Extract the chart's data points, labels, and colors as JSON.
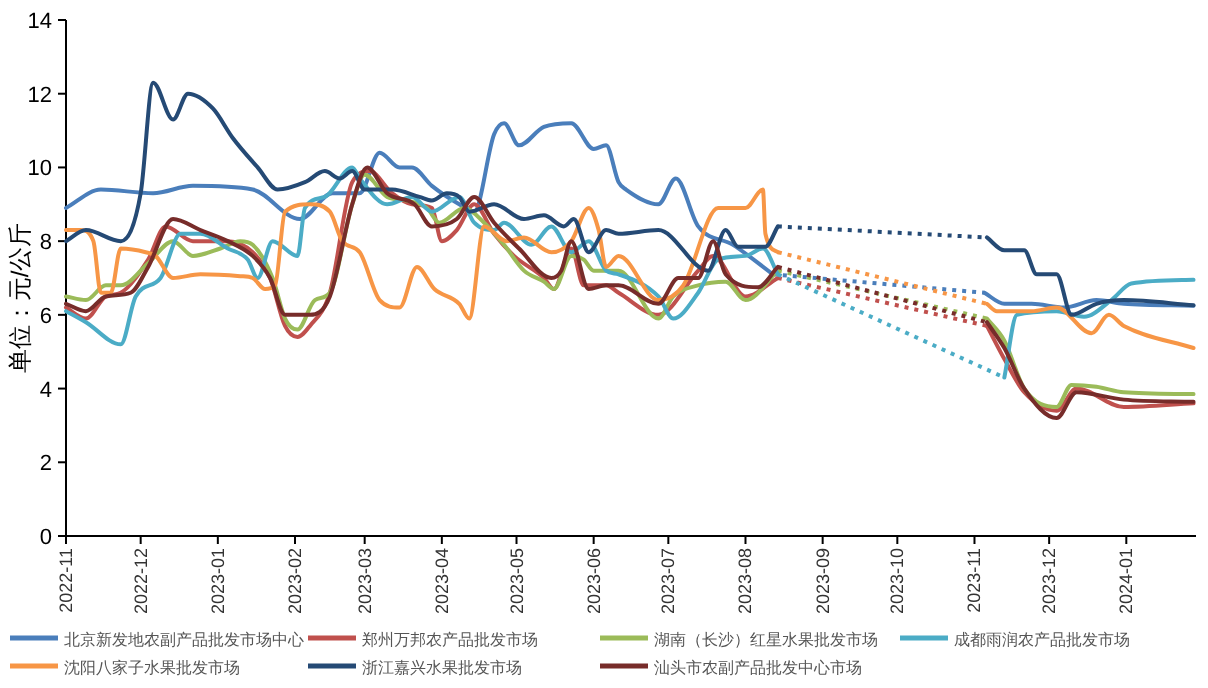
{
  "chart_data": {
    "type": "line",
    "ylabel": "单位：元/公斤",
    "ylim": [
      0,
      14
    ],
    "yticks": [
      0,
      2,
      4,
      6,
      8,
      10,
      12,
      14
    ],
    "xlim": [
      "2022-11-01",
      "2024-01-29"
    ],
    "xticks": [
      {
        "value": "2022-11-01",
        "label": "2022-11"
      },
      {
        "value": "2022-12-01",
        "label": "2022-12"
      },
      {
        "value": "2023-01-01",
        "label": "2023-01"
      },
      {
        "value": "2023-02-01",
        "label": "2023-02"
      },
      {
        "value": "2023-03-01",
        "label": "2023-03"
      },
      {
        "value": "2023-04-01",
        "label": "2023-04"
      },
      {
        "value": "2023-05-01",
        "label": "2023-05"
      },
      {
        "value": "2023-06-01",
        "label": "2023-06"
      },
      {
        "value": "2023-07-01",
        "label": "2023-07"
      },
      {
        "value": "2023-08-01",
        "label": "2023-08"
      },
      {
        "value": "2023-09-01",
        "label": "2023-09"
      },
      {
        "value": "2023-10-01",
        "label": "2023-10"
      },
      {
        "value": "2023-11-01",
        "label": "2023-11"
      },
      {
        "value": "2023-12-01",
        "label": "2023-12"
      },
      {
        "value": "2024-01-01",
        "label": "2024-01"
      }
    ],
    "grid": false,
    "legend": "bottom",
    "marker": "none",
    "line_style": "solid",
    "series": [
      {
        "name": "北京新发地农副产品批发市场中心",
        "color": "#4a7ebb",
        "x": [
          "2022-11-01",
          "2022-11-15",
          "2022-12-06",
          "2022-12-22",
          "2023-01-15",
          "2023-02-03",
          "2023-02-16",
          "2023-02-27",
          "2023-03-07",
          "2023-03-15",
          "2023-03-20",
          "2023-03-28",
          "2023-04-08",
          "2023-04-14",
          "2023-04-22",
          "2023-04-26",
          "2023-05-02",
          "2023-05-12",
          "2023-05-23",
          "2023-06-01",
          "2023-06-06",
          "2023-06-11",
          "2023-06-14",
          "2023-06-27",
          "2023-07-04",
          "2023-07-13",
          "2023-07-27",
          "2023-08-12",
          "2023-09-20",
          "2023-11-05",
          "2023-11-13",
          "2023-11-24",
          "2023-12-07",
          "2023-12-20",
          "2023-12-31",
          "2024-01-28"
        ],
        "values": [
          8.9,
          9.4,
          9.3,
          9.5,
          9.4,
          8.6,
          9.3,
          9.3,
          10.4,
          10.0,
          10.0,
          9.5,
          9.0,
          8.8,
          10.9,
          11.2,
          10.6,
          11.1,
          11.2,
          10.5,
          10.6,
          9.6,
          9.4,
          9.0,
          9.7,
          8.4,
          7.9,
          7.1,
          null,
          6.6,
          6.3,
          6.3,
          6.2,
          6.4,
          6.3,
          6.25
        ]
      },
      {
        "name": "郑州万邦农产品批发市场",
        "color": "#c0504d",
        "x": [
          "2022-11-01",
          "2022-11-09",
          "2022-11-17",
          "2022-11-23",
          "2022-12-04",
          "2022-12-11",
          "2022-12-22",
          "2023-01-05",
          "2023-01-15",
          "2023-01-22",
          "2023-01-28",
          "2023-02-02",
          "2023-02-07",
          "2023-02-15",
          "2023-02-24",
          "2023-03-03",
          "2023-03-12",
          "2023-03-20",
          "2023-03-28",
          "2023-04-01",
          "2023-04-07",
          "2023-04-14",
          "2023-04-22",
          "2023-04-30",
          "2023-05-12",
          "2023-05-16",
          "2023-05-23",
          "2023-05-28",
          "2023-06-06",
          "2023-06-11",
          "2023-06-27",
          "2023-07-13",
          "2023-07-19",
          "2023-08-01",
          "2023-08-14",
          "2023-09-20",
          "2023-11-06",
          "2023-11-13",
          "2023-11-21",
          "2023-12-04",
          "2023-12-12",
          "2023-12-31",
          "2024-01-28"
        ],
        "values": [
          6.2,
          5.9,
          6.5,
          6.6,
          7.5,
          8.4,
          8.0,
          8.0,
          7.7,
          7.0,
          5.7,
          5.4,
          5.7,
          6.6,
          9.6,
          9.9,
          9.3,
          9.0,
          8.9,
          8.0,
          8.3,
          9.0,
          8.2,
          7.6,
          7.0,
          6.7,
          7.8,
          6.8,
          6.8,
          6.6,
          6.0,
          7.2,
          7.6,
          6.5,
          7.0,
          null,
          5.7,
          4.8,
          3.9,
          3.4,
          4.0,
          3.5,
          3.6
        ]
      },
      {
        "name": "湖南（长沙）红星水果批发市场",
        "color": "#9bbb59",
        "x": [
          "2022-11-01",
          "2022-11-09",
          "2022-11-17",
          "2022-11-23",
          "2022-12-04",
          "2022-12-14",
          "2022-12-22",
          "2023-01-02",
          "2023-01-10",
          "2023-01-15",
          "2023-01-23",
          "2023-01-28",
          "2023-02-02",
          "2023-02-09",
          "2023-02-15",
          "2023-02-24",
          "2023-03-01",
          "2023-03-10",
          "2023-03-18",
          "2023-03-26",
          "2023-03-31",
          "2023-04-10",
          "2023-04-18",
          "2023-04-26",
          "2023-05-04",
          "2023-05-12",
          "2023-05-16",
          "2023-05-23",
          "2023-05-28",
          "2023-06-01",
          "2023-06-09",
          "2023-06-11",
          "2023-06-27",
          "2023-07-03",
          "2023-07-13",
          "2023-07-24",
          "2023-08-01",
          "2023-08-14",
          "2023-09-20",
          "2023-11-06",
          "2023-11-13",
          "2023-11-21",
          "2023-12-04",
          "2023-12-10",
          "2023-12-20",
          "2023-12-31",
          "2024-01-28"
        ],
        "values": [
          6.5,
          6.4,
          6.8,
          6.8,
          7.4,
          8.0,
          7.6,
          7.8,
          8.0,
          7.9,
          7.0,
          5.9,
          5.6,
          6.4,
          6.6,
          9.0,
          9.8,
          9.2,
          9.1,
          8.9,
          8.5,
          8.9,
          8.5,
          7.9,
          7.2,
          6.9,
          6.7,
          7.6,
          7.5,
          7.2,
          7.2,
          7.2,
          5.9,
          6.5,
          6.8,
          6.9,
          6.4,
          7.2,
          null,
          5.9,
          5.3,
          4.0,
          3.5,
          4.1,
          4.05,
          3.9,
          3.85
        ]
      },
      {
        "name": "成都雨润农产品批发市场",
        "color": "#4bacc6",
        "x": [
          "2022-11-01",
          "2022-11-09",
          "2022-11-23",
          "2022-11-29",
          "2022-12-09",
          "2022-12-17",
          "2022-12-25",
          "2023-01-05",
          "2023-01-13",
          "2023-01-17",
          "2023-01-23",
          "2023-02-02",
          "2023-02-05",
          "2023-02-13",
          "2023-02-24",
          "2023-02-27",
          "2023-03-10",
          "2023-03-20",
          "2023-03-28",
          "2023-04-08",
          "2023-04-14",
          "2023-04-22",
          "2023-04-26",
          "2023-05-07",
          "2023-05-15",
          "2023-05-23",
          "2023-05-30",
          "2023-06-06",
          "2023-06-11",
          "2023-06-27",
          "2023-07-03",
          "2023-07-13",
          "2023-07-21",
          "2023-08-01",
          "2023-08-08",
          "2023-08-14",
          "2023-09-20",
          "2023-11-13",
          "2023-11-18",
          "2023-12-04",
          "2023-12-15",
          "2023-12-26",
          "2024-01-03",
          "2024-01-28"
        ],
        "values": [
          6.1,
          5.8,
          5.2,
          6.5,
          7.0,
          8.2,
          8.2,
          7.8,
          7.5,
          7.0,
          8.0,
          7.6,
          8.9,
          9.2,
          10.0,
          9.7,
          9.0,
          9.2,
          8.8,
          9.2,
          8.5,
          8.3,
          8.5,
          7.9,
          8.4,
          7.7,
          8.0,
          7.2,
          7.1,
          6.5,
          5.9,
          6.6,
          7.5,
          7.6,
          7.8,
          7.1,
          null,
          4.3,
          6.0,
          6.1,
          5.95,
          6.4,
          6.85,
          6.95
        ]
      },
      {
        "name": "沈阳八家子水果批发市场",
        "color": "#f79646",
        "x": [
          "2022-11-01",
          "2022-11-07",
          "2022-11-12",
          "2022-11-15",
          "2022-11-19",
          "2022-11-23",
          "2022-12-03",
          "2022-12-07",
          "2022-12-14",
          "2022-12-25",
          "2023-01-10",
          "2023-01-15",
          "2023-01-20",
          "2023-01-24",
          "2023-01-28",
          "2023-02-07",
          "2023-02-15",
          "2023-02-20",
          "2023-02-27",
          "2023-03-07",
          "2023-03-15",
          "2023-03-22",
          "2023-03-29",
          "2023-04-08",
          "2023-04-12",
          "2023-04-18",
          "2023-04-27",
          "2023-05-04",
          "2023-05-15",
          "2023-05-23",
          "2023-05-30",
          "2023-06-03",
          "2023-06-06",
          "2023-06-11",
          "2023-06-27",
          "2023-07-07",
          "2023-07-21",
          "2023-08-01",
          "2023-08-08",
          "2023-08-09",
          "2023-08-14",
          "2023-09-20",
          "2023-11-06",
          "2023-11-10",
          "2023-11-24",
          "2023-12-04",
          "2023-12-18",
          "2023-12-25",
          "2023-12-31",
          "2024-01-28"
        ],
        "values": [
          8.3,
          8.3,
          8.0,
          6.6,
          6.6,
          7.8,
          7.7,
          7.6,
          7.0,
          7.1,
          7.05,
          7.0,
          6.7,
          6.8,
          8.8,
          9.0,
          8.8,
          8.0,
          7.7,
          6.4,
          6.2,
          7.3,
          6.7,
          6.3,
          5.9,
          8.4,
          8.0,
          8.1,
          7.7,
          8.0,
          8.9,
          8.3,
          7.3,
          7.6,
          6.4,
          6.8,
          8.9,
          8.9,
          9.4,
          8.2,
          7.7,
          null,
          6.3,
          6.1,
          6.1,
          6.2,
          5.5,
          6.0,
          5.7,
          5.1
        ]
      },
      {
        "name": "浙江嘉兴水果批发市场",
        "color": "#254a75",
        "x": [
          "2022-11-01",
          "2022-11-09",
          "2022-11-23",
          "2022-12-01",
          "2022-12-06",
          "2022-12-14",
          "2022-12-20",
          "2022-12-30",
          "2023-01-07",
          "2023-01-17",
          "2023-01-25",
          "2023-02-05",
          "2023-02-13",
          "2023-02-19",
          "2023-02-24",
          "2023-03-01",
          "2023-03-12",
          "2023-03-23",
          "2023-03-28",
          "2023-04-03",
          "2023-04-08",
          "2023-04-12",
          "2023-04-22",
          "2023-05-04",
          "2023-05-12",
          "2023-05-20",
          "2023-05-24",
          "2023-05-30",
          "2023-06-06",
          "2023-06-11",
          "2023-06-27",
          "2023-07-17",
          "2023-07-24",
          "2023-07-29",
          "2023-08-09",
          "2023-08-14",
          "2023-09-20",
          "2023-11-06",
          "2023-11-13",
          "2023-11-21",
          "2023-11-26",
          "2023-12-04",
          "2023-12-10",
          "2023-12-20",
          "2023-12-31",
          "2024-01-28"
        ],
        "values": [
          8.0,
          8.3,
          8.0,
          9.3,
          12.3,
          11.3,
          12.0,
          11.6,
          10.8,
          10.0,
          9.4,
          9.6,
          9.9,
          9.7,
          9.9,
          9.4,
          9.4,
          9.2,
          9.1,
          9.3,
          9.2,
          8.8,
          9.0,
          8.6,
          8.7,
          8.4,
          8.6,
          7.7,
          8.3,
          8.2,
          8.3,
          7.2,
          8.3,
          7.85,
          7.85,
          8.4,
          null,
          8.1,
          7.75,
          7.75,
          7.1,
          7.1,
          6.0,
          6.3,
          6.4,
          6.26
        ]
      },
      {
        "name": "汕头市农副产品批发中心市场",
        "color": "#772c2a",
        "x": [
          "2022-11-01",
          "2022-11-09",
          "2022-11-17",
          "2022-11-27",
          "2022-12-04",
          "2022-12-14",
          "2022-12-25",
          "2023-01-05",
          "2023-01-15",
          "2023-01-22",
          "2023-01-28",
          "2023-02-07",
          "2023-02-15",
          "2023-02-24",
          "2023-03-02",
          "2023-03-10",
          "2023-03-21",
          "2023-03-28",
          "2023-04-07",
          "2023-04-14",
          "2023-04-22",
          "2023-05-02",
          "2023-05-15",
          "2023-05-19",
          "2023-05-23",
          "2023-05-30",
          "2023-06-06",
          "2023-06-11",
          "2023-06-27",
          "2023-07-05",
          "2023-07-13",
          "2023-07-19",
          "2023-07-24",
          "2023-08-06",
          "2023-08-14",
          "2023-09-20",
          "2023-11-06",
          "2023-11-13",
          "2023-11-21",
          "2023-12-04",
          "2023-12-12",
          "2023-12-31",
          "2024-01-28"
        ],
        "values": [
          6.3,
          6.1,
          6.5,
          6.6,
          7.3,
          8.6,
          8.3,
          8.0,
          7.6,
          7.0,
          6.0,
          6.0,
          6.5,
          9.0,
          10.0,
          9.3,
          9.0,
          8.4,
          8.6,
          9.2,
          8.5,
          7.8,
          7.0,
          7.2,
          8.0,
          6.7,
          6.8,
          6.8,
          6.3,
          7.0,
          7.0,
          8.0,
          7.1,
          6.75,
          7.3,
          null,
          5.8,
          5.1,
          4.0,
          3.2,
          3.9,
          3.7,
          3.64
        ]
      }
    ]
  }
}
